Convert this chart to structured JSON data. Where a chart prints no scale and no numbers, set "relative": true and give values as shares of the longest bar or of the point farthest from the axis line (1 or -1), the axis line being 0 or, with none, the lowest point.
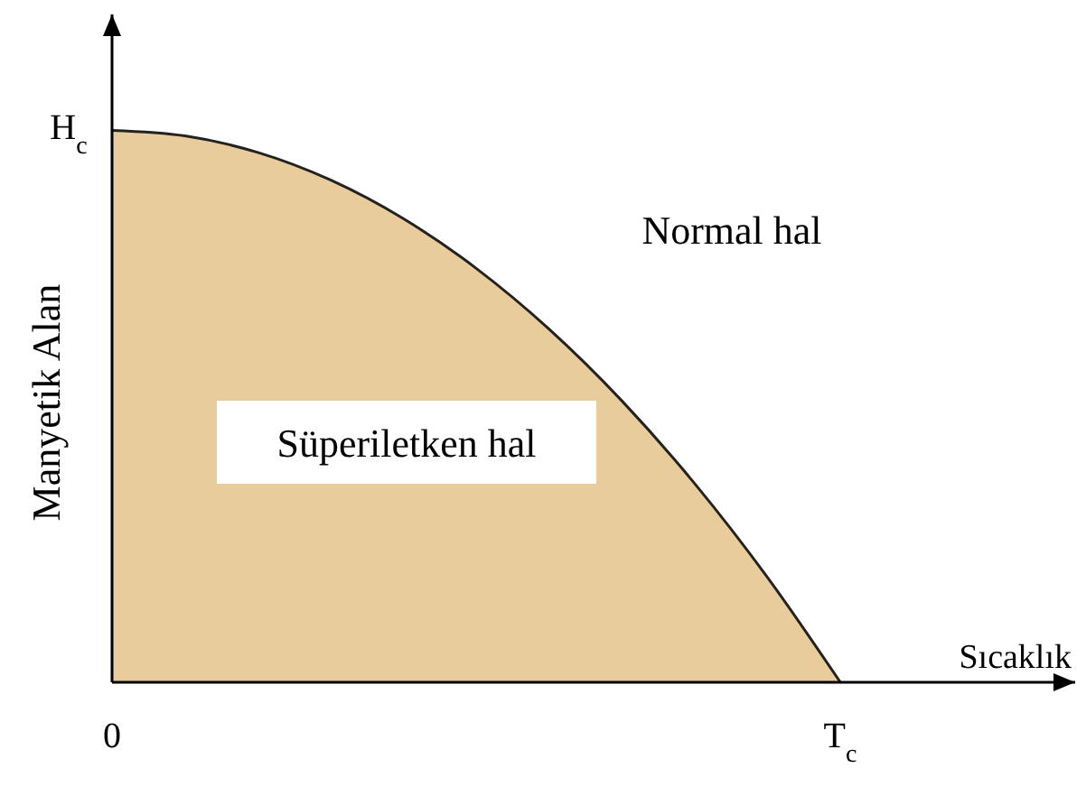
{
  "chart_data": {
    "type": "area",
    "xlabel": "Sıcaklık",
    "ylabel": "Manyetik Alan",
    "relative": true,
    "categories": [
      null,
      null,
      null,
      null,
      null,
      null,
      null,
      null,
      null,
      null,
      null,
      null,
      null,
      null
    ],
    "series": [
      {
        "color": "#e9cc9c",
        "values": [
          1,
          0.99,
          0.96,
          0.91,
          0.84,
          0.75,
          0.64,
          0.51,
          0.36,
          0.19,
          0,
          null,
          null,
          null
        ]
      }
    ],
    "annotations": [
      "Normal hal",
      "Süperiletken hal",
      "0",
      "T$_{c}$",
      "H$_{c}$"
    ]
  }
}
